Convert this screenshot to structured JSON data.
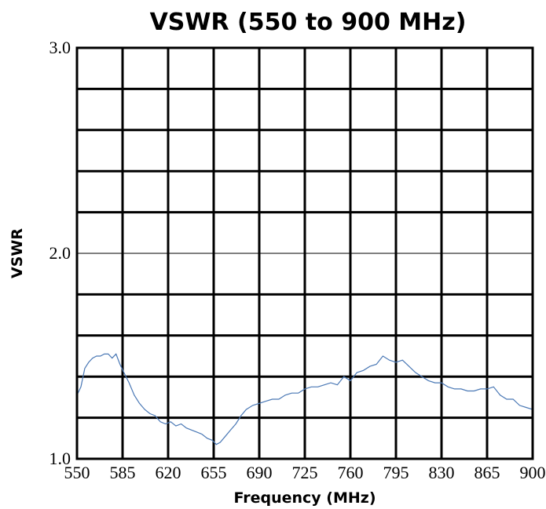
{
  "chart_data": {
    "type": "line",
    "title": "VSWR (550 to 900 MHz)",
    "xlabel": "Frequency (MHz)",
    "ylabel": "VSWR",
    "xlim": [
      550,
      900
    ],
    "ylim": [
      1.0,
      3.0
    ],
    "x_ticks": [
      "550",
      "585",
      "620",
      "655",
      "690",
      "725",
      "760",
      "795",
      "830",
      "865",
      "900"
    ],
    "x_tick_values": [
      550,
      585,
      620,
      655,
      690,
      725,
      760,
      795,
      830,
      865,
      900
    ],
    "y_ticks": [
      "1.0",
      "2.0",
      "3.0"
    ],
    "y_tick_values": [
      1.0,
      2.0,
      3.0
    ],
    "y_minor_step": 0.2,
    "grid": true,
    "series": [
      {
        "color": "#4a78b5",
        "x": [
          550,
          553,
          556,
          559,
          562,
          565,
          568,
          571,
          574,
          577,
          580,
          583,
          586,
          590,
          594,
          598,
          602,
          606,
          610,
          614,
          618,
          622,
          626,
          630,
          634,
          638,
          642,
          646,
          650,
          654,
          657,
          660,
          664,
          668,
          672,
          676,
          680,
          685,
          690,
          695,
          700,
          705,
          710,
          715,
          720,
          725,
          730,
          735,
          740,
          745,
          750,
          755,
          760,
          765,
          770,
          775,
          780,
          785,
          790,
          795,
          800,
          805,
          810,
          815,
          820,
          825,
          830,
          835,
          840,
          845,
          850,
          855,
          860,
          865,
          870,
          875,
          880,
          885,
          890,
          895,
          900
        ],
        "y": [
          1.31,
          1.35,
          1.44,
          1.47,
          1.49,
          1.5,
          1.5,
          1.51,
          1.51,
          1.49,
          1.51,
          1.46,
          1.42,
          1.37,
          1.31,
          1.27,
          1.24,
          1.22,
          1.21,
          1.18,
          1.17,
          1.18,
          1.16,
          1.17,
          1.15,
          1.14,
          1.13,
          1.12,
          1.1,
          1.09,
          1.07,
          1.08,
          1.11,
          1.14,
          1.17,
          1.21,
          1.24,
          1.26,
          1.27,
          1.28,
          1.29,
          1.29,
          1.31,
          1.32,
          1.32,
          1.34,
          1.35,
          1.35,
          1.36,
          1.37,
          1.36,
          1.4,
          1.38,
          1.42,
          1.43,
          1.45,
          1.46,
          1.5,
          1.48,
          1.47,
          1.48,
          1.45,
          1.42,
          1.4,
          1.38,
          1.37,
          1.37,
          1.35,
          1.34,
          1.34,
          1.33,
          1.33,
          1.34,
          1.34,
          1.35,
          1.31,
          1.29,
          1.29,
          1.26,
          1.25,
          1.24
        ]
      }
    ]
  }
}
